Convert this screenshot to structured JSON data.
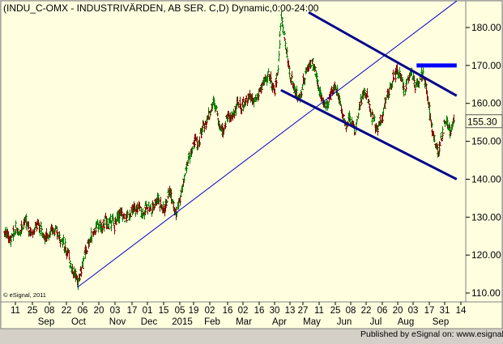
{
  "window": {
    "title": "(INDU_C-OMX - INDUSTRIVÄRDEN, AB SER. C,D) Dynamic,0:00-24:00",
    "copyright": "© eSignal, 2011",
    "credit": "Published by eSignal on: www.esignal.com"
  },
  "colors": {
    "plot_background": "#ffffe0",
    "frame_background": "#d4d0c8",
    "bar_up": "#008000",
    "bar_down": "#8b0000",
    "channel": "#00008b",
    "trendline": "#0000cd",
    "resistance": "#0000ff",
    "last_price_badge": "#ffffe0"
  },
  "chart_data": {
    "type": "ohlc",
    "ylim": [
      106,
      188
    ],
    "y_ticks": [
      110,
      120,
      130,
      140,
      150,
      160,
      170,
      180
    ],
    "y_tick_labels": [
      "110.00",
      "120.00",
      "130.00",
      "140.00",
      "150.00",
      "160.00",
      "170.00",
      "180.00"
    ],
    "last_price": 155.3,
    "last_price_label": "155.30",
    "day_labels": [
      "11",
      "25",
      "08",
      "22",
      "06",
      "20",
      "03",
      "17",
      "01",
      "15",
      "05",
      "19",
      "02",
      "16",
      "02",
      "16",
      "30",
      "13",
      "27",
      "11",
      "25",
      "08",
      "22",
      "06",
      "20",
      "03",
      "17",
      "31",
      "14"
    ],
    "month_labels": [
      "Sep",
      "Oct",
      "Nov",
      "Dec",
      "2015",
      "Feb",
      "Mar",
      "Apr",
      "May",
      "Jun",
      "Jul",
      "Aug",
      "Sep"
    ],
    "grid": false,
    "trend_line": {
      "start": {
        "week": 23,
        "price": 111.5
      },
      "end": {
        "week": 146,
        "price": 187
      }
    },
    "channel_upper": {
      "start": {
        "week": 98,
        "price": 184
      },
      "end": {
        "week": 146,
        "price": 162
      }
    },
    "channel_lower": {
      "start": {
        "week": 89,
        "price": 163.5
      },
      "end": {
        "week": 146,
        "price": 140
      }
    },
    "resistance_line": {
      "start": {
        "week": 133,
        "price": 170
      },
      "end": {
        "week": 146,
        "price": 170
      }
    },
    "weekly_close": [
      126,
      124,
      125,
      127,
      126,
      128,
      129,
      127,
      126,
      127,
      128,
      127,
      125,
      125,
      126,
      127,
      126,
      125,
      124,
      122,
      120,
      117,
      115,
      113,
      116,
      119,
      122,
      124,
      126,
      127,
      128,
      127,
      129,
      128,
      129,
      128,
      130,
      131,
      130,
      130,
      131,
      132,
      132,
      133,
      131,
      132,
      133,
      132,
      134,
      135,
      133,
      132,
      135,
      137,
      134,
      131,
      134,
      138,
      142,
      146,
      147,
      150,
      149,
      152,
      154,
      156,
      158,
      160,
      159,
      154,
      153,
      155,
      157,
      156,
      158,
      160,
      159,
      160,
      161,
      162,
      160,
      161,
      163,
      165,
      166,
      168,
      165,
      163,
      170,
      183,
      178,
      172,
      167,
      165,
      162,
      161,
      165,
      168,
      170,
      171,
      169,
      165,
      161,
      160,
      159,
      162,
      165,
      163,
      161,
      157,
      154,
      156,
      155,
      153,
      157,
      161,
      163,
      162,
      157,
      156,
      153,
      155,
      157,
      161,
      163,
      166,
      168,
      168,
      166,
      163,
      166,
      169,
      166,
      164,
      166,
      168,
      165,
      158,
      153,
      149,
      147,
      151,
      155,
      154,
      153,
      155
    ]
  }
}
